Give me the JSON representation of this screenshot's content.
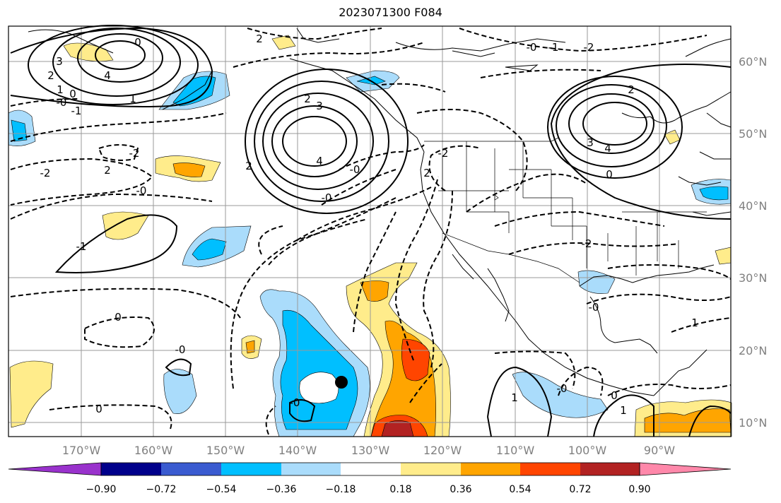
{
  "title": "2023071300 F084",
  "map": {
    "lon_labels": [
      "170°W",
      "160°W",
      "150°W",
      "140°W",
      "130°W",
      "120°W",
      "110°W",
      "100°W",
      "90°W"
    ],
    "lat_labels": [
      "60°N",
      "50°N",
      "40°N",
      "30°N",
      "20°N",
      "10°N"
    ],
    "contour_labels": [
      "3",
      "4",
      "2",
      "1",
      "0",
      "0",
      "1",
      "2",
      "-0",
      "-2",
      "-1",
      "2",
      "-2",
      "2",
      "3",
      "4",
      "-0",
      "-0",
      "2",
      "-1",
      "-0",
      "-2",
      "2",
      "2",
      "3",
      "4",
      "0",
      "-2",
      "-1",
      "-0",
      "-2",
      "-0",
      "1",
      "0",
      "-0",
      "0",
      "-0",
      "1",
      "-0",
      "0",
      "1"
    ],
    "storm_marker": "black-dot",
    "colors": {
      "land_line": "#000000",
      "grid": "#9a9a9a",
      "axis_label": "#808080"
    }
  },
  "colorbar": {
    "ticks": [
      "−0.90",
      "−0.72",
      "−0.54",
      "−0.36",
      "−0.18",
      "0.18",
      "0.36",
      "0.54",
      "0.72",
      "0.90"
    ],
    "colors": [
      "#9932cc",
      "#00008b",
      "#3a5bd0",
      "#00bfff",
      "#aadcfb",
      "#ffffff",
      "#ffec8b",
      "#ffa500",
      "#ff4500",
      "#b22222",
      "#ff88aa"
    ]
  }
}
